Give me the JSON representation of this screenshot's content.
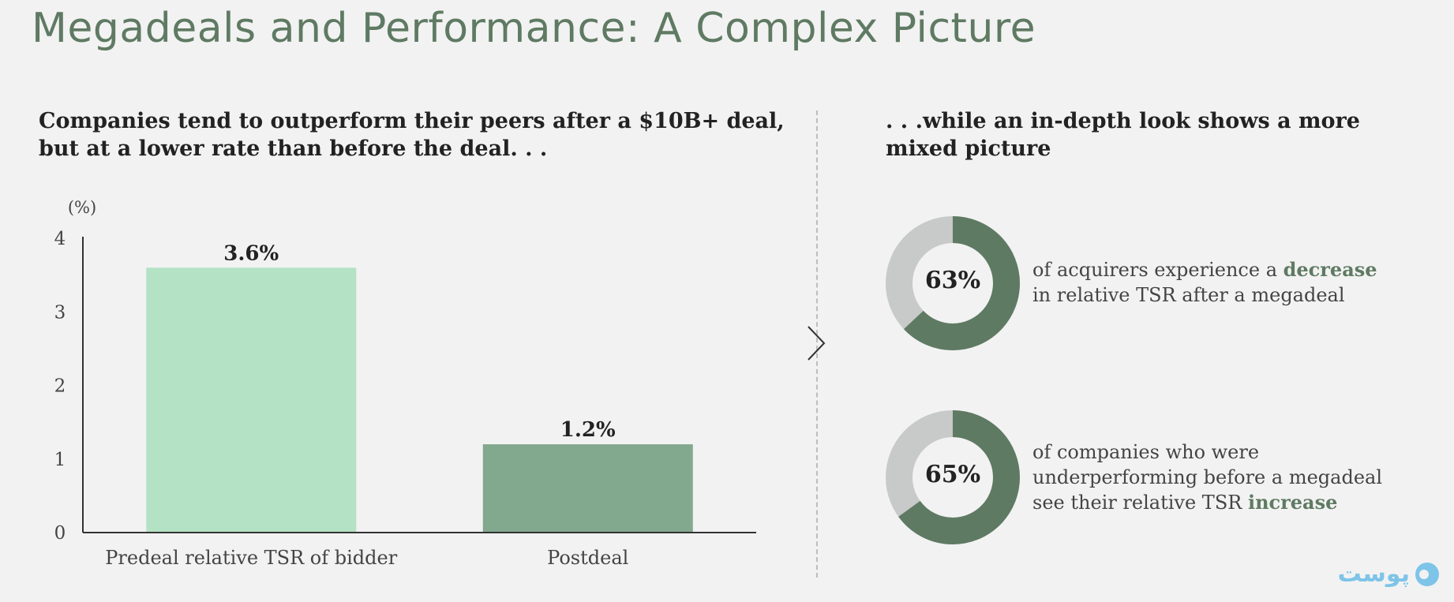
{
  "title": "Megadeals and Performance: A Complex Picture",
  "left_subhead": [
    "Companies tend to outperform their peers after a $10B+ deal,",
    "but at a lower rate than before the deal. . ."
  ],
  "right_subhead": [
    ". . .while an in-depth look shows a more",
    "mixed picture"
  ],
  "chart_data": {
    "type": "bar",
    "categories": [
      "Predeal relative TSR of bidder",
      "Postdeal"
    ],
    "values": [
      3.6,
      1.2
    ],
    "data_labels": [
      "3.6%",
      "1.2%"
    ],
    "colors": [
      "#b4e2c4",
      "#82a88e"
    ],
    "ylabel": "(%)",
    "xlabel": "",
    "title": "",
    "ylim": [
      0,
      4
    ],
    "yticks": [
      0,
      1,
      2,
      3,
      4
    ],
    "grid": false,
    "legend": "none"
  },
  "donuts": [
    {
      "percent": 63,
      "percent_label": "63%",
      "desc_lines": [
        {
          "text": "of acquirers experience a ",
          "emph": "decrease"
        },
        {
          "text": "in relative TSR after a megadeal",
          "emph": ""
        }
      ]
    },
    {
      "percent": 65,
      "percent_label": "65%",
      "desc_lines": [
        {
          "text": "of companies who were",
          "emph": ""
        },
        {
          "text": "underperforming before a megadeal",
          "emph": ""
        },
        {
          "text": "see their relative TSR ",
          "emph": "increase"
        }
      ]
    }
  ],
  "colors": {
    "accent": "#5f7a63",
    "donut_filled": "#5f7a63",
    "donut_remaining": "#c8c9c9",
    "divider": "#bdbdbd",
    "logo": "#7ec4e8"
  },
  "logo": {
    "text": "پوست",
    "icon": "logo-icon"
  }
}
